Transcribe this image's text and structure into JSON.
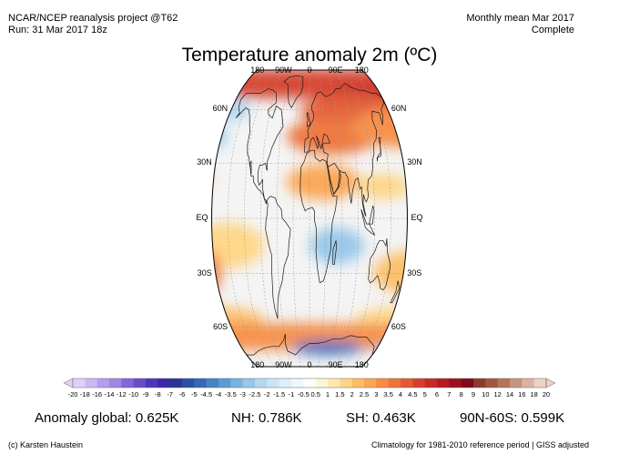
{
  "header": {
    "source": "NCAR/NCEP reanalysis project @T62",
    "run": "Run: 31 Mar 2017 18z",
    "period": "Monthly mean Mar 2017",
    "status": "Complete"
  },
  "title": "Temperature anomaly 2m (ºC)",
  "map": {
    "projection": "robinson",
    "colors": {
      "ocean_neutral": "#f4f4f4",
      "coast": "#1a1a1a"
    },
    "lon_labels_top": [
      "180",
      "90W",
      "0",
      "90E",
      "180"
    ],
    "lon_labels_bottom": [
      "180",
      "90W",
      "0",
      "90E",
      "180"
    ],
    "lat_labels_left": [
      "60N",
      "30N",
      "EQ",
      "30S",
      "60S"
    ],
    "lat_labels_right": [
      "60N",
      "30N",
      "EQ",
      "30S",
      "60S"
    ]
  },
  "colorbar": {
    "labels": [
      "-20",
      "-18",
      "-16",
      "-14",
      "-12",
      "-10",
      "-9",
      "-8",
      "-7",
      "-6",
      "-5",
      "-4.5",
      "-4",
      "-3.5",
      "-3",
      "-2.5",
      "-2",
      "-1.5",
      "-1",
      "-0.5",
      "0.5",
      "1",
      "1.5",
      "2",
      "2.5",
      "3",
      "3.5",
      "4",
      "4.5",
      "5",
      "6",
      "7",
      "8",
      "9",
      "10",
      "12",
      "14",
      "16",
      "18",
      "20"
    ],
    "colors": [
      "#e0d0f8",
      "#cdb8f2",
      "#b59ded",
      "#9f86e4",
      "#8466d8",
      "#6a4bc8",
      "#4e36b8",
      "#3a2aa8",
      "#2b3596",
      "#2b4fa8",
      "#3567b8",
      "#4682c6",
      "#5b9bd4",
      "#79b3e0",
      "#97c7ea",
      "#b3d8f1",
      "#cae5f6",
      "#deeff9",
      "#eef7fc",
      "#ffffff",
      "#fff6d6",
      "#ffe8ac",
      "#fed584",
      "#fdbe66",
      "#fca653",
      "#f78d44",
      "#ee743a",
      "#e35a32",
      "#d6402b",
      "#c82a26",
      "#b31b22",
      "#9c111f",
      "#7e0a1a",
      "#8b3a2e",
      "#a0573f",
      "#b47556",
      "#c8937a",
      "#dcb3a2",
      "#ecd1c5"
    ]
  },
  "stats": {
    "global": "Anomaly global: 0.625K",
    "nh": "NH: 0.786K",
    "sh": "SH: 0.463K",
    "band": "90N-60S: 0.599K"
  },
  "footer": {
    "credit": "(c) Karsten Haustein",
    "climatology": "Climatology for 1981-2010 reference period | GISS adjusted"
  }
}
